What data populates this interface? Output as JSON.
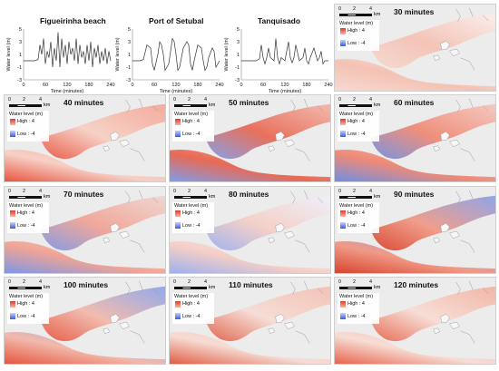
{
  "chart_data": [
    {
      "type": "line",
      "title": "Figueirinha beach",
      "xlabel": "Time (minutes)",
      "ylabel": "Water level (m)",
      "xlim": [
        0,
        240
      ],
      "ylim": [
        -3,
        5
      ],
      "xticks": [
        0,
        60,
        120,
        180,
        240
      ],
      "yticks": [
        -3,
        -1,
        1,
        3,
        5
      ],
      "x": [
        0,
        20,
        30,
        40,
        45,
        50,
        55,
        60,
        65,
        70,
        75,
        80,
        85,
        90,
        95,
        100,
        105,
        110,
        115,
        120,
        125,
        130,
        135,
        140,
        145,
        150,
        155,
        160,
        165,
        170,
        175,
        180,
        185,
        190,
        195,
        200,
        205,
        210,
        215,
        220,
        225,
        230,
        235,
        240
      ],
      "y": [
        0,
        0,
        0,
        0.2,
        2.5,
        1.0,
        3.5,
        -0.5,
        1.5,
        0.5,
        3.0,
        -1.0,
        2.0,
        0,
        4.5,
        -1.0,
        3.5,
        0.5,
        2.5,
        -0.5,
        3.0,
        1.0,
        2.0,
        0,
        3.5,
        -0.5,
        2.5,
        0.5,
        1.5,
        -0.5,
        2.5,
        0,
        3.0,
        -1.0,
        2.0,
        0.5,
        2.5,
        -0.5,
        1.5,
        0,
        2.0,
        -0.5,
        1.5,
        0
      ]
    },
    {
      "type": "line",
      "title": "Port of Setubal",
      "xlabel": "Time (minutes)",
      "ylabel": "Water level (m)",
      "xlim": [
        0,
        240
      ],
      "ylim": [
        -3,
        5
      ],
      "xticks": [
        0,
        60,
        120,
        180,
        240
      ],
      "yticks": [
        -3,
        -1,
        1,
        3,
        5
      ],
      "x": [
        0,
        20,
        30,
        40,
        50,
        55,
        60,
        70,
        75,
        80,
        85,
        90,
        100,
        110,
        115,
        120,
        125,
        130,
        140,
        150,
        155,
        160,
        165,
        170,
        180,
        190,
        195,
        200,
        205,
        210,
        220,
        225,
        230,
        240
      ],
      "y": [
        0,
        0,
        0.2,
        2.5,
        2.0,
        -0.5,
        -1.5,
        1.0,
        3.0,
        2.5,
        1.0,
        -1.5,
        -0.5,
        3.5,
        3.0,
        1.0,
        -1.5,
        -1.0,
        2.0,
        3.0,
        2.5,
        -0.5,
        -1.5,
        0,
        2.5,
        2.0,
        0,
        -1.5,
        -1.0,
        0.5,
        2.0,
        1.5,
        -1.0,
        0
      ]
    },
    {
      "type": "line",
      "title": "Tanquisado",
      "xlabel": "Time (minutes)",
      "ylabel": "Water level (m)",
      "xlim": [
        0,
        240
      ],
      "ylim": [
        -3,
        5
      ],
      "xticks": [
        0,
        60,
        120,
        180,
        240
      ],
      "yticks": [
        -3,
        -1,
        1,
        3,
        5
      ],
      "x": [
        0,
        20,
        40,
        50,
        55,
        60,
        65,
        70,
        75,
        80,
        90,
        95,
        100,
        105,
        110,
        120,
        130,
        135,
        140,
        145,
        150,
        160,
        170,
        175,
        180,
        185,
        190,
        200,
        210,
        215,
        220,
        225,
        230,
        240
      ],
      "y": [
        0,
        0,
        0,
        0.3,
        2.5,
        0.5,
        -0.5,
        0.5,
        2.0,
        0.5,
        0,
        3.5,
        0.5,
        -0.5,
        0.5,
        0,
        3.0,
        0.5,
        -0.3,
        0.5,
        2.5,
        0,
        0.5,
        2.0,
        0,
        -0.5,
        0.5,
        2.0,
        0,
        0.5,
        1.5,
        -0.5,
        0,
        0
      ]
    }
  ],
  "maps": [
    {
      "time": "30 minutes",
      "tone": "30"
    },
    {
      "time": "40 minutes",
      "tone": "40"
    },
    {
      "time": "50 minutes",
      "tone": "50"
    },
    {
      "time": "60 minutes",
      "tone": "60"
    },
    {
      "time": "70 minutes",
      "tone": "70"
    },
    {
      "time": "80 minutes",
      "tone": "80"
    },
    {
      "time": "90 minutes",
      "tone": "90"
    },
    {
      "time": "100 minutes",
      "tone": "100"
    },
    {
      "time": "110 minutes",
      "tone": "110"
    },
    {
      "time": "120 minutes",
      "tone": "120"
    }
  ],
  "scale_bar": {
    "ticks": [
      "0",
      "2",
      "4"
    ],
    "unit": "km"
  },
  "legend": {
    "title": "Water level (m)",
    "high": "High : 4",
    "low": "Low : -4"
  },
  "colors": {
    "high": "#e03a2a",
    "low": "#3b5bdb",
    "land": "#ececec",
    "line": "#333333"
  }
}
